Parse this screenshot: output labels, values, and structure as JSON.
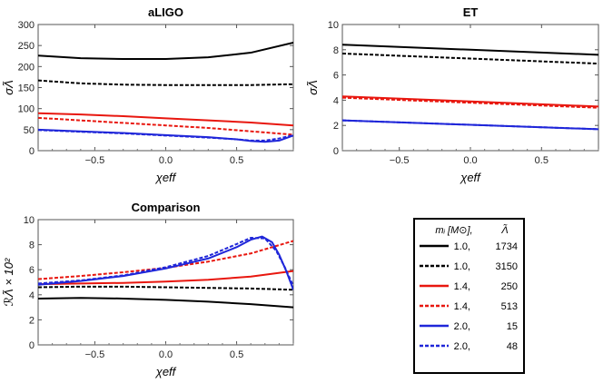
{
  "chart_data": [
    {
      "type": "line",
      "title": "aLIGO",
      "xlabel": "χeff",
      "ylabel": "σΛ̃",
      "xlim": [
        -0.9,
        0.9
      ],
      "ylim": [
        0,
        300
      ],
      "xticks": [
        -0.5,
        0.0,
        0.5
      ],
      "yticks": [
        0,
        50,
        100,
        150,
        200,
        250,
        300
      ],
      "xtick_labels": [
        "−0.5",
        "0.0",
        "0.5"
      ],
      "ytick_labels": [
        "0",
        "50",
        "100",
        "150",
        "200",
        "250",
        "300"
      ],
      "series": [
        {
          "x": [
            -0.9,
            -0.6,
            -0.3,
            0.0,
            0.3,
            0.6,
            0.9
          ],
          "y": [
            226,
            220,
            218,
            218,
            222,
            233,
            257
          ]
        },
        {
          "x": [
            -0.9,
            -0.6,
            -0.3,
            0.0,
            0.3,
            0.6,
            0.9
          ],
          "y": [
            167,
            160,
            157,
            156,
            156,
            156,
            158
          ]
        },
        {
          "x": [
            -0.9,
            -0.6,
            -0.3,
            0.0,
            0.3,
            0.6,
            0.9
          ],
          "y": [
            89,
            86,
            82,
            77,
            72,
            67,
            60
          ]
        },
        {
          "x": [
            -0.9,
            -0.6,
            -0.3,
            0.0,
            0.3,
            0.6,
            0.9
          ],
          "y": [
            78,
            72,
            66,
            60,
            54,
            46,
            38
          ]
        },
        {
          "x": [
            -0.9,
            -0.6,
            -0.3,
            0.0,
            0.3,
            0.5,
            0.6,
            0.7,
            0.8,
            0.9
          ],
          "y": [
            50,
            46,
            42,
            37,
            32,
            27,
            23,
            21,
            24,
            36
          ]
        },
        {
          "x": [
            -0.9,
            -0.6,
            -0.3,
            0.0,
            0.3,
            0.5,
            0.6,
            0.7,
            0.8,
            0.9
          ],
          "y": [
            49,
            45,
            41,
            36,
            31,
            27,
            24,
            24,
            29,
            37
          ]
        }
      ]
    },
    {
      "type": "line",
      "title": "ET",
      "xlabel": "χeff",
      "ylabel": "σΛ̃",
      "xlim": [
        -0.9,
        0.9
      ],
      "ylim": [
        0,
        10
      ],
      "xticks": [
        -0.5,
        0.0,
        0.5
      ],
      "yticks": [
        0,
        2,
        4,
        6,
        8,
        10
      ],
      "xtick_labels": [
        "−0.5",
        "0.0",
        "0.5"
      ],
      "ytick_labels": [
        "0",
        "2",
        "4",
        "6",
        "8",
        "10"
      ],
      "series": [
        {
          "x": [
            -0.9,
            0.0,
            0.9
          ],
          "y": [
            8.4,
            8.0,
            7.6
          ]
        },
        {
          "x": [
            -0.9,
            0.0,
            0.9
          ],
          "y": [
            7.7,
            7.3,
            6.9
          ]
        },
        {
          "x": [
            -0.9,
            0.0,
            0.9
          ],
          "y": [
            4.3,
            3.9,
            3.5
          ]
        },
        {
          "x": [
            -0.9,
            0.0,
            0.9
          ],
          "y": [
            4.2,
            3.8,
            3.4
          ]
        },
        {
          "x": [
            -0.9,
            0.0,
            0.9
          ],
          "y": [
            2.4,
            2.05,
            1.7
          ]
        },
        {
          "x": [
            -0.9,
            0.0,
            0.9
          ],
          "y": [
            2.4,
            2.05,
            1.7
          ]
        }
      ]
    },
    {
      "type": "line",
      "title": "Comparison",
      "xlabel": "χeff",
      "ylabel": "ℛΛ̃ × 10²",
      "xlim": [
        -0.9,
        0.9
      ],
      "ylim": [
        0,
        10
      ],
      "xticks": [
        -0.5,
        0.0,
        0.5
      ],
      "yticks": [
        0,
        2,
        4,
        6,
        8,
        10
      ],
      "xtick_labels": [
        "−0.5",
        "0.0",
        "0.5"
      ],
      "ytick_labels": [
        "0",
        "2",
        "4",
        "6",
        "8",
        "10"
      ],
      "series": [
        {
          "x": [
            -0.9,
            -0.6,
            -0.3,
            0.0,
            0.3,
            0.6,
            0.9
          ],
          "y": [
            3.7,
            3.75,
            3.7,
            3.6,
            3.45,
            3.25,
            3.0
          ]
        },
        {
          "x": [
            -0.9,
            -0.6,
            -0.3,
            0.0,
            0.3,
            0.6,
            0.9
          ],
          "y": [
            4.6,
            4.65,
            4.65,
            4.6,
            4.55,
            4.5,
            4.4
          ]
        },
        {
          "x": [
            -0.9,
            -0.6,
            -0.3,
            0.0,
            0.3,
            0.6,
            0.9
          ],
          "y": [
            4.85,
            4.9,
            4.95,
            5.05,
            5.2,
            5.45,
            5.9
          ]
        },
        {
          "x": [
            -0.9,
            -0.6,
            -0.3,
            0.0,
            0.3,
            0.6,
            0.9
          ],
          "y": [
            5.25,
            5.5,
            5.8,
            6.15,
            6.65,
            7.3,
            8.3
          ]
        },
        {
          "x": [
            -0.9,
            -0.6,
            -0.3,
            0.0,
            0.3,
            0.5,
            0.6,
            0.68,
            0.75,
            0.8,
            0.85,
            0.9
          ],
          "y": [
            4.8,
            5.1,
            5.5,
            6.1,
            6.9,
            7.8,
            8.4,
            8.65,
            8.2,
            7.2,
            5.9,
            4.4
          ]
        },
        {
          "x": [
            -0.9,
            -0.6,
            -0.3,
            0.0,
            0.3,
            0.5,
            0.6,
            0.7,
            0.78,
            0.84,
            0.9
          ],
          "y": [
            4.9,
            5.15,
            5.55,
            6.2,
            7.1,
            8.05,
            8.55,
            8.5,
            7.5,
            6.2,
            4.7
          ]
        }
      ]
    }
  ],
  "series_styles": [
    {
      "color": "#000000",
      "dashed": false
    },
    {
      "color": "#000000",
      "dashed": true
    },
    {
      "color": "#e8170f",
      "dashed": false
    },
    {
      "color": "#e8170f",
      "dashed": true
    },
    {
      "color": "#1f26d9",
      "dashed": false
    },
    {
      "color": "#1f26d9",
      "dashed": true
    }
  ],
  "legend": {
    "header_mass": "mᵢ [M⊙],",
    "header_lambda": "Λ̃",
    "entries": [
      {
        "mass": "1.0,",
        "lambda": "1734"
      },
      {
        "mass": "1.0,",
        "lambda": "3150"
      },
      {
        "mass": "1.4,",
        "lambda": "250"
      },
      {
        "mass": "1.4,",
        "lambda": "513"
      },
      {
        "mass": "2.0,",
        "lambda": "15"
      },
      {
        "mass": "2.0,",
        "lambda": "48"
      }
    ]
  }
}
